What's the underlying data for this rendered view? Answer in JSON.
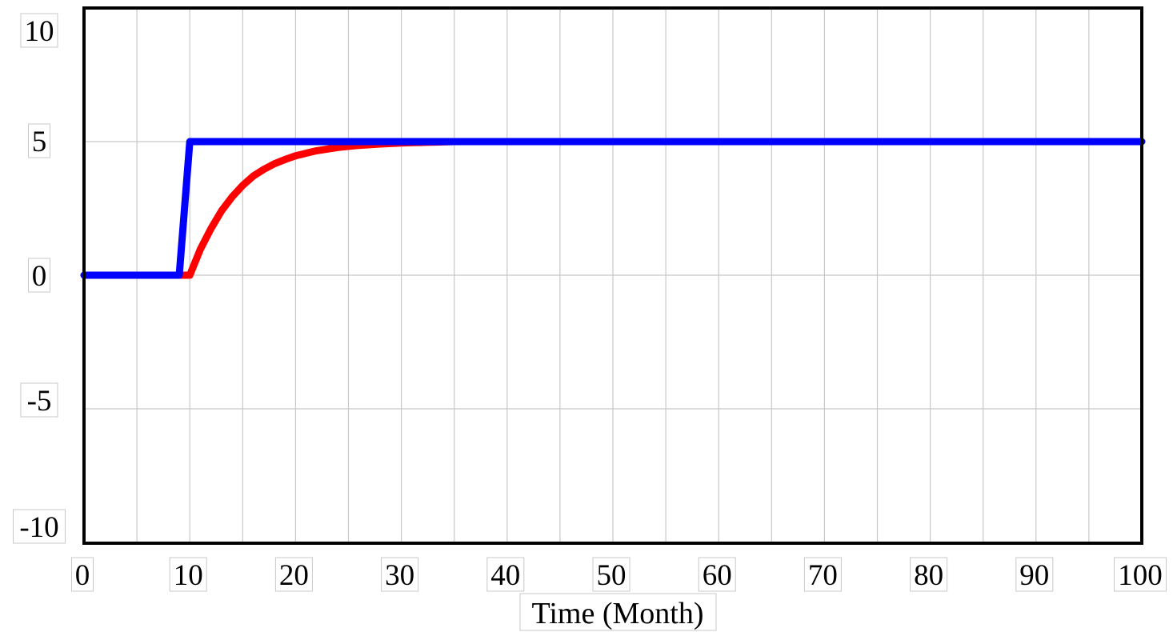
{
  "chart_data": {
    "type": "line",
    "title": "",
    "xlabel": "Time (Month)",
    "ylabel": "",
    "xlim": [
      0,
      100
    ],
    "ylim": [
      -10,
      10
    ],
    "x_ticks": [
      0,
      10,
      20,
      30,
      40,
      50,
      60,
      70,
      80,
      90,
      100
    ],
    "y_ticks": [
      10,
      5,
      0,
      -5,
      -10
    ],
    "x_tick_labels": [
      "0",
      "10",
      "20",
      "30",
      "40",
      "50",
      "60",
      "70",
      "80",
      "90",
      "100"
    ],
    "y_tick_labels": [
      "10",
      "5",
      "0",
      "-5",
      "-10"
    ],
    "grid": true,
    "x_minor_gridlines": [
      5,
      15,
      25,
      35,
      45,
      55,
      65,
      75,
      85,
      95
    ],
    "legend": "none",
    "series": [
      {
        "color": "#ff0000",
        "x": [
          0,
          9,
          10,
          11,
          12,
          13,
          14,
          15,
          16,
          17,
          18,
          19,
          20,
          22,
          24,
          26,
          28,
          30,
          32,
          35
        ],
        "values": [
          0,
          0,
          0,
          0.97,
          1.74,
          2.41,
          2.93,
          3.36,
          3.71,
          3.96,
          4.17,
          4.33,
          4.47,
          4.66,
          4.78,
          4.86,
          4.91,
          4.95,
          4.97,
          5.0
        ]
      },
      {
        "color": "#0000ff",
        "x": [
          0,
          9,
          10,
          100
        ],
        "values": [
          0,
          0,
          5,
          5
        ]
      }
    ]
  }
}
